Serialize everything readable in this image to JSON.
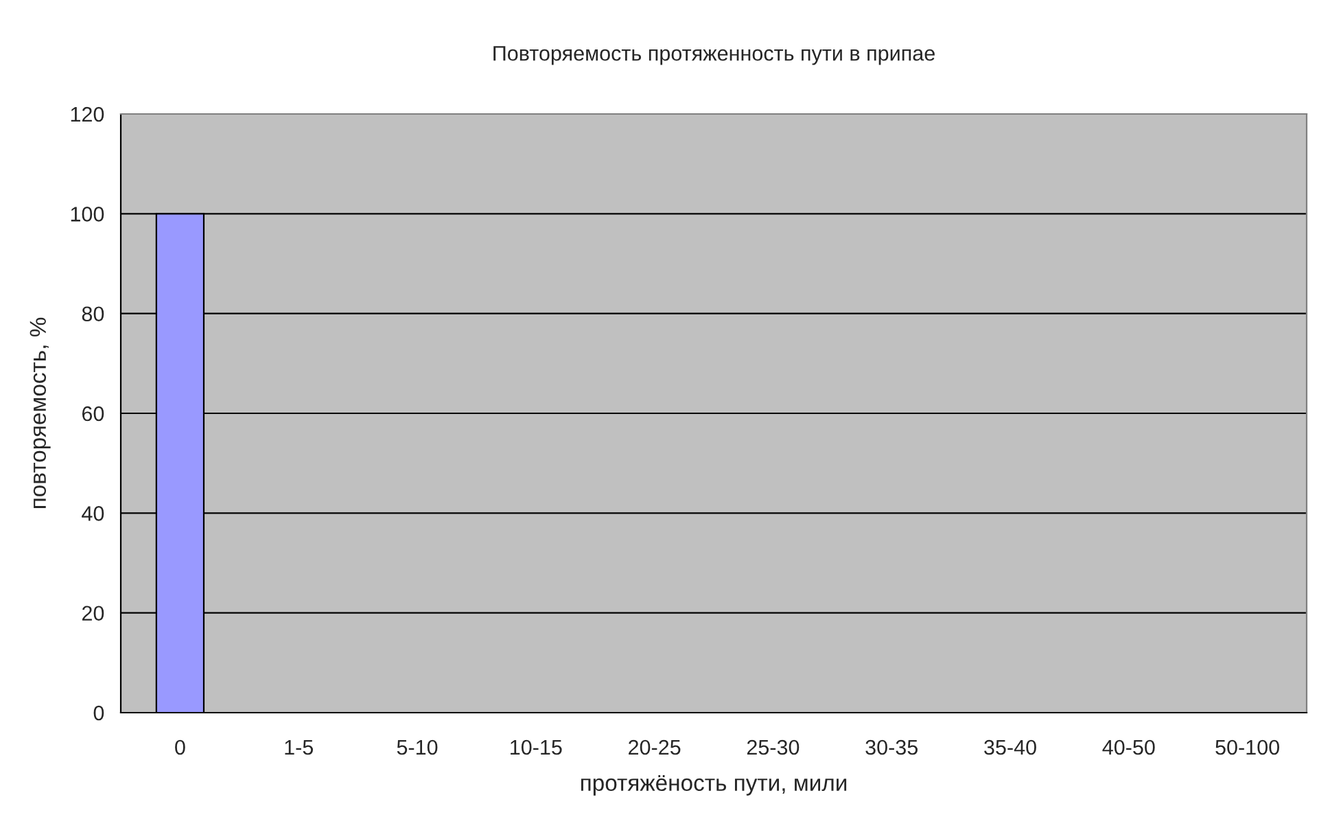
{
  "chart_data": {
    "type": "bar",
    "title": "Повторяемость протяженность пути в припае",
    "xlabel": "протяжёность пути, мили",
    "ylabel": "повторяемость, %",
    "categories": [
      "0",
      "1-5",
      "5-10",
      "10-15",
      "20-25",
      "25-30",
      "30-35",
      "35-40",
      "40-50",
      "50-100"
    ],
    "values": [
      100,
      0,
      0,
      0,
      0,
      0,
      0,
      0,
      0,
      0
    ],
    "color": "#9999ff",
    "ylim": [
      0,
      120
    ],
    "yticks": [
      0,
      20,
      40,
      60,
      80,
      100,
      120
    ],
    "grid": "y",
    "legend": false
  }
}
